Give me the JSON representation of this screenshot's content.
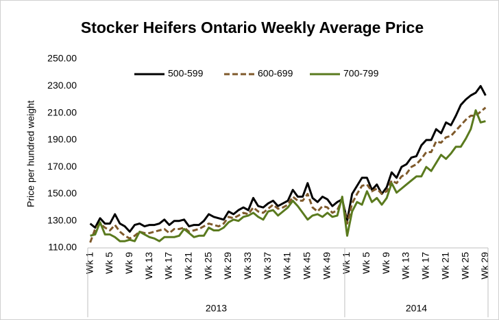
{
  "chart_data": {
    "type": "line",
    "title": "Stocker Heifers Ontario Weekly Average Price",
    "y_label": "Price per hundred weight",
    "categories": [
      "Wk 1",
      null,
      null,
      null,
      "Wk 5",
      null,
      null,
      null,
      "Wk 9",
      null,
      null,
      null,
      "Wk 13",
      null,
      null,
      null,
      "Wk 17",
      null,
      null,
      null,
      "Wk 21",
      null,
      null,
      null,
      "Wk 25",
      null,
      null,
      null,
      "Wk 29",
      null,
      null,
      null,
      "Wk 33",
      null,
      null,
      null,
      "Wk 37",
      null,
      null,
      null,
      "Wk 41",
      null,
      null,
      null,
      "Wk 45",
      null,
      null,
      null,
      "Wk 49",
      null,
      null,
      null,
      "Wk 1",
      null,
      null,
      null,
      "Wk 5",
      null,
      null,
      null,
      "Wk 9",
      null,
      null,
      null,
      "Wk 13",
      null,
      null,
      null,
      "Wk 17",
      null,
      null,
      null,
      "Wk 21",
      null,
      null,
      null,
      "Wk 25",
      null,
      null,
      null,
      "Wk 29"
    ],
    "groups": [
      "2013",
      "2014"
    ],
    "series": [
      {
        "name": "500-599",
        "color": "#000000",
        "dash": false,
        "values": [
          128,
          125,
          132,
          128,
          128,
          135,
          128,
          126,
          122,
          127,
          128,
          126,
          127,
          127,
          128,
          131,
          127,
          130,
          130,
          131,
          126,
          127,
          127,
          130,
          135,
          133,
          132,
          131,
          137,
          135,
          138,
          140,
          138,
          147,
          141,
          140,
          143,
          145,
          141,
          143,
          145,
          153,
          148,
          148,
          158,
          147,
          144,
          148,
          146,
          141,
          144,
          146,
          130,
          150,
          156,
          162,
          162,
          153,
          157,
          150,
          155,
          166,
          162,
          170,
          172,
          177,
          178,
          186,
          190,
          190,
          198,
          195,
          203,
          201,
          208,
          216,
          220,
          223,
          225,
          230,
          223
        ]
      },
      {
        "name": "600-699",
        "color": "#7f5a2b",
        "dash": true,
        "values": [
          114,
          124,
          128,
          125,
          123,
          127,
          122,
          119,
          117,
          119,
          122,
          121,
          121,
          122,
          123,
          124,
          121,
          124,
          124,
          125,
          122,
          123,
          124,
          126,
          128,
          127,
          126,
          128,
          133,
          132,
          134,
          136,
          135,
          140,
          137,
          136,
          139,
          142,
          139,
          140,
          142,
          148,
          145,
          145,
          150,
          140,
          137,
          141,
          140,
          136,
          138,
          146,
          128,
          143,
          150,
          156,
          157,
          152,
          154,
          150,
          152,
          160,
          158,
          163,
          165,
          170,
          172,
          176,
          181,
          181,
          189,
          188,
          192,
          193,
          197,
          201,
          205,
          208,
          208,
          211,
          214
        ]
      },
      {
        "name": "700-799",
        "color": "#5a7a1e",
        "dash": false,
        "values": [
          119,
          120,
          129,
          120,
          120,
          118,
          115,
          115,
          116,
          115,
          122,
          120,
          118,
          117,
          115,
          118,
          118,
          118,
          119,
          124,
          121,
          118,
          119,
          119,
          125,
          123,
          123,
          125,
          129,
          131,
          130,
          133,
          134,
          136,
          133,
          131,
          137,
          138,
          134,
          137,
          140,
          145,
          141,
          136,
          131,
          134,
          135,
          133,
          136,
          133,
          134,
          148,
          119,
          137,
          144,
          142,
          152,
          144,
          147,
          142,
          147,
          158,
          151,
          154,
          157,
          160,
          163,
          163,
          170,
          167,
          173,
          179,
          176,
          180,
          185,
          185,
          191,
          198,
          212,
          203,
          204
        ]
      }
    ],
    "ylim": [
      110,
      250
    ],
    "yticks": [
      {
        "value": 110,
        "label": "110.00"
      },
      {
        "value": 130,
        "label": "130.00"
      },
      {
        "value": 150,
        "label": "150.00"
      },
      {
        "value": 170,
        "label": "170.00"
      },
      {
        "value": 190,
        "label": "190.00"
      },
      {
        "value": 210,
        "label": "210.00"
      },
      {
        "value": 230,
        "label": "230.00"
      },
      {
        "value": 250,
        "label": "250.00"
      }
    ],
    "legend": "top"
  }
}
